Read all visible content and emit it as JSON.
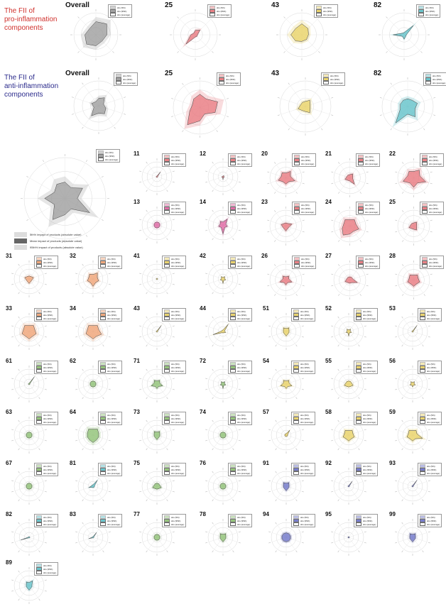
{
  "section_labels": {
    "pro": "The FII of\npro-inflammation\ncomponents",
    "anti": "The FII of\nanti-inflammation\ncomponents"
  },
  "label_colors": {
    "pro": "#d0312d",
    "anti": "#2b2b8c"
  },
  "legend_terms": [
    "sbs (5th)",
    "sbs (95th)",
    "sbs (average)"
  ],
  "key": {
    "low": "5th% impact of products (absolute value)",
    "mean": "Mean impact of products (absolute value)",
    "high": "95th% impact of products (absolute value)"
  },
  "palette": {
    "gray": "#9a9a9a",
    "red": "#e8747a",
    "orange": "#f0a070",
    "yellow": "#e8d060",
    "green": "#8cc070",
    "teal": "#5cc0c8",
    "blue": "#6a70c8",
    "pink": "#e060a0"
  },
  "chart_data": [
    {
      "id": "overall-pro",
      "type": "radar",
      "title": "Overall",
      "color": "gray",
      "values": [
        0.6,
        0.7,
        0.5,
        0.4,
        0.5,
        0.6,
        0.5,
        0.4
      ]
    },
    {
      "id": "25-pro",
      "type": "radar",
      "title": "25",
      "color": "red",
      "values": [
        0.2,
        0.3,
        0.1,
        0.1,
        0.1,
        0.6,
        0.2,
        0.1
      ]
    },
    {
      "id": "43-pro",
      "type": "radar",
      "title": "43",
      "color": "yellow",
      "values": [
        0.5,
        0.4,
        0.3,
        0.3,
        0.3,
        0.4,
        0.5,
        0.4
      ]
    },
    {
      "id": "82-pro",
      "type": "radar",
      "title": "82",
      "color": "teal",
      "values": [
        0.1,
        0.6,
        0.1,
        0.1,
        0.2,
        0.1,
        0.5,
        0.1
      ]
    },
    {
      "id": "overall-anti",
      "type": "radar",
      "title": "Overall",
      "color": "gray",
      "values": [
        0.3,
        0.4,
        0.2,
        0.3,
        0.4,
        0.3,
        0.5,
        0.2,
        0.3,
        0.2
      ]
    },
    {
      "id": "25-anti",
      "type": "radar",
      "title": "25",
      "color": "red",
      "values": [
        0.5,
        0.4,
        0.7,
        0.6,
        0.3,
        0.5,
        0.8,
        0.4,
        0.3,
        0.4
      ]
    },
    {
      "id": "43-anti",
      "type": "radar",
      "title": "43",
      "color": "yellow",
      "values": [
        0.2,
        0.3,
        0.2,
        0.2,
        0.3,
        0.2,
        0.2,
        0.3,
        0.2,
        0.2
      ]
    },
    {
      "id": "82-anti",
      "type": "radar",
      "title": "82",
      "color": "teal",
      "values": [
        0.3,
        0.3,
        0.4,
        0.3,
        0.5,
        0.3,
        0.8,
        0.3,
        0.3,
        0.3
      ]
    },
    {
      "id": "overall-big",
      "type": "radar",
      "title": "",
      "color": "gray",
      "values": [
        0.4,
        0.3,
        0.5,
        0.3,
        0.7,
        0.3,
        0.4,
        0.6,
        0.3,
        0.5,
        0.3,
        0.4
      ]
    },
    {
      "id": "11",
      "type": "radar",
      "title": "11",
      "color": "red",
      "values": [
        0.05,
        0.4,
        0.05,
        0.05,
        0.05,
        0.05,
        0.05,
        0.05,
        0.05,
        0.05
      ]
    },
    {
      "id": "12",
      "type": "radar",
      "title": "12",
      "color": "red",
      "values": [
        0.05,
        0.1,
        0.05,
        0.1,
        0.05,
        0.2,
        0.05,
        0.1,
        0.05,
        0.05
      ]
    },
    {
      "id": "20",
      "type": "radar",
      "title": "20",
      "color": "red",
      "values": [
        0.3,
        0.5,
        0.3,
        0.6,
        0.3,
        0.4,
        0.3,
        0.5,
        0.3,
        0.4
      ]
    },
    {
      "id": "21",
      "type": "radar",
      "title": "21",
      "color": "red",
      "values": [
        0.2,
        0.3,
        0.2,
        0.2,
        0.5,
        0.2,
        0.2,
        0.3,
        0.2,
        0.2
      ]
    },
    {
      "id": "22",
      "type": "radar",
      "title": "22",
      "color": "red",
      "values": [
        0.4,
        0.6,
        0.4,
        0.8,
        0.4,
        0.6,
        0.4,
        0.7,
        0.4,
        0.5
      ]
    },
    {
      "id": "13",
      "type": "radar",
      "title": "13",
      "color": "pink",
      "values": [
        0.2,
        0.2,
        0.2,
        0.2,
        0.2,
        0.2,
        0.2,
        0.2,
        0.2,
        0.2
      ]
    },
    {
      "id": "14",
      "type": "radar",
      "title": "14",
      "color": "pink",
      "values": [
        0.2,
        0.5,
        0.2,
        0.3,
        0.2,
        0.6,
        0.2,
        0.3,
        0.2,
        0.3
      ]
    },
    {
      "id": "23",
      "type": "radar",
      "title": "23",
      "color": "red",
      "values": [
        0.2,
        0.2,
        0.4,
        0.2,
        0.2,
        0.3,
        0.2,
        0.2,
        0.3,
        0.2
      ]
    },
    {
      "id": "24",
      "type": "radar",
      "title": "24",
      "color": "red",
      "values": [
        0.4,
        0.5,
        0.4,
        0.6,
        0.4,
        0.5,
        0.7,
        0.5,
        0.4,
        0.5
      ]
    },
    {
      "id": "25",
      "type": "radar",
      "title": "25",
      "color": "red",
      "values": [
        0.2,
        0.3,
        0.2,
        0.2,
        0.3,
        0.2,
        0.2,
        0.3,
        0.2,
        0.2
      ]
    },
    {
      "id": "31",
      "type": "radar",
      "title": "31",
      "color": "orange",
      "values": [
        0.2,
        0.2,
        0.3,
        0.2,
        0.2,
        0.3,
        0.2,
        0.2,
        0.3,
        0.2
      ]
    },
    {
      "id": "32",
      "type": "radar",
      "title": "32",
      "color": "orange",
      "values": [
        0.3,
        0.5,
        0.3,
        0.4,
        0.3,
        0.5,
        0.3,
        0.4,
        0.3,
        0.4
      ]
    },
    {
      "id": "41",
      "type": "radar",
      "title": "41",
      "color": "yellow",
      "values": [
        0.05,
        0.05,
        0.05,
        0.05,
        0.05,
        0.05,
        0.05,
        0.05,
        0.05,
        0.05
      ]
    },
    {
      "id": "42",
      "type": "radar",
      "title": "42",
      "color": "yellow",
      "values": [
        0.1,
        0.2,
        0.1,
        0.2,
        0.1,
        0.3,
        0.1,
        0.2,
        0.1,
        0.2
      ]
    },
    {
      "id": "26",
      "type": "radar",
      "title": "26",
      "color": "red",
      "values": [
        0.2,
        0.3,
        0.2,
        0.4,
        0.2,
        0.3,
        0.2,
        0.4,
        0.2,
        0.3
      ]
    },
    {
      "id": "27",
      "type": "radar",
      "title": "27",
      "color": "red",
      "values": [
        0.2,
        0.2,
        0.2,
        0.5,
        0.2,
        0.2,
        0.2,
        0.3,
        0.2,
        0.2
      ]
    },
    {
      "id": "28",
      "type": "radar",
      "title": "28",
      "color": "red",
      "values": [
        0.3,
        0.4,
        0.3,
        0.4,
        0.3,
        0.4,
        0.3,
        0.4,
        0.3,
        0.4
      ]
    },
    {
      "id": "33",
      "type": "radar",
      "title": "33",
      "color": "orange",
      "values": [
        0.4,
        0.5,
        0.4,
        0.5,
        0.4,
        0.5,
        0.4,
        0.5,
        0.4,
        0.5
      ]
    },
    {
      "id": "34",
      "type": "radar",
      "title": "34",
      "color": "orange",
      "values": [
        0.4,
        0.5,
        0.4,
        0.6,
        0.4,
        0.5,
        0.4,
        0.5,
        0.4,
        0.5
      ]
    },
    {
      "id": "43",
      "type": "radar",
      "title": "43",
      "color": "yellow",
      "values": [
        0.05,
        0.5,
        0.05,
        0.05,
        0.05,
        0.05,
        0.05,
        0.05,
        0.05,
        0.05
      ]
    },
    {
      "id": "44",
      "type": "radar",
      "title": "44",
      "color": "yellow",
      "values": [
        0.1,
        0.6,
        0.1,
        0.2,
        0.1,
        0.1,
        0.1,
        0.7,
        0.1,
        0.1
      ]
    },
    {
      "id": "51",
      "type": "radar",
      "title": "51",
      "color": "yellow",
      "values": [
        0.2,
        0.3,
        0.2,
        0.2,
        0.2,
        0.3,
        0.2,
        0.2,
        0.2,
        0.3
      ]
    },
    {
      "id": "52",
      "type": "radar",
      "title": "52",
      "color": "yellow",
      "values": [
        0.1,
        0.2,
        0.1,
        0.2,
        0.1,
        0.3,
        0.1,
        0.2,
        0.1,
        0.2
      ]
    },
    {
      "id": "53",
      "type": "radar",
      "title": "53",
      "color": "yellow",
      "values": [
        0.05,
        0.5,
        0.05,
        0.05,
        0.05,
        0.05,
        0.05,
        0.05,
        0.05,
        0.05
      ]
    },
    {
      "id": "61",
      "type": "radar",
      "title": "61",
      "color": "green",
      "values": [
        0.05,
        0.6,
        0.05,
        0.05,
        0.05,
        0.05,
        0.05,
        0.05,
        0.05,
        0.05
      ]
    },
    {
      "id": "62",
      "type": "radar",
      "title": "62",
      "color": "green",
      "values": [
        0.2,
        0.2,
        0.2,
        0.2,
        0.2,
        0.2,
        0.2,
        0.2,
        0.2,
        0.2
      ]
    },
    {
      "id": "71",
      "type": "radar",
      "title": "71",
      "color": "green",
      "values": [
        0.2,
        0.3,
        0.2,
        0.4,
        0.2,
        0.3,
        0.2,
        0.4,
        0.2,
        0.3
      ]
    },
    {
      "id": "72",
      "type": "radar",
      "title": "72",
      "color": "green",
      "values": [
        0.1,
        0.2,
        0.1,
        0.2,
        0.1,
        0.3,
        0.1,
        0.2,
        0.1,
        0.2
      ]
    },
    {
      "id": "54",
      "type": "radar",
      "title": "54",
      "color": "yellow",
      "values": [
        0.2,
        0.3,
        0.2,
        0.4,
        0.2,
        0.3,
        0.2,
        0.4,
        0.2,
        0.3
      ]
    },
    {
      "id": "55",
      "type": "radar",
      "title": "55",
      "color": "yellow",
      "values": [
        0.2,
        0.2,
        0.2,
        0.3,
        0.2,
        0.2,
        0.2,
        0.3,
        0.2,
        0.2
      ]
    },
    {
      "id": "56",
      "type": "radar",
      "title": "56",
      "color": "yellow",
      "values": [
        0.1,
        0.2,
        0.1,
        0.2,
        0.1,
        0.2,
        0.1,
        0.2,
        0.1,
        0.2
      ]
    },
    {
      "id": "63",
      "type": "radar",
      "title": "63",
      "color": "green",
      "values": [
        0.2,
        0.2,
        0.2,
        0.2,
        0.2,
        0.2,
        0.2,
        0.2,
        0.2,
        0.2
      ]
    },
    {
      "id": "64",
      "type": "radar",
      "title": "64",
      "color": "green",
      "values": [
        0.4,
        0.5,
        0.4,
        0.4,
        0.4,
        0.5,
        0.4,
        0.4,
        0.4,
        0.5
      ]
    },
    {
      "id": "73",
      "type": "radar",
      "title": "73",
      "color": "green",
      "values": [
        0.2,
        0.3,
        0.2,
        0.2,
        0.2,
        0.3,
        0.2,
        0.2,
        0.2,
        0.3
      ]
    },
    {
      "id": "74",
      "type": "radar",
      "title": "74",
      "color": "green",
      "values": [
        0.2,
        0.2,
        0.2,
        0.2,
        0.2,
        0.2,
        0.2,
        0.2,
        0.2,
        0.2
      ]
    },
    {
      "id": "57",
      "type": "radar",
      "title": "57",
      "color": "yellow",
      "values": [
        0.1,
        0.4,
        0.1,
        0.1,
        0.1,
        0.1,
        0.1,
        0.1,
        0.1,
        0.1
      ]
    },
    {
      "id": "58",
      "type": "radar",
      "title": "58",
      "color": "yellow",
      "values": [
        0.3,
        0.4,
        0.3,
        0.4,
        0.3,
        0.4,
        0.3,
        0.4,
        0.3,
        0.4
      ]
    },
    {
      "id": "59",
      "type": "radar",
      "title": "59",
      "color": "yellow",
      "values": [
        0.3,
        0.4,
        0.3,
        0.7,
        0.3,
        0.4,
        0.3,
        0.4,
        0.3,
        0.4
      ]
    },
    {
      "id": "67",
      "type": "radar",
      "title": "67",
      "color": "green",
      "values": [
        0.2,
        0.2,
        0.2,
        0.2,
        0.2,
        0.2,
        0.2,
        0.2,
        0.2,
        0.2
      ]
    },
    {
      "id": "81",
      "type": "radar",
      "title": "81",
      "color": "teal",
      "values": [
        0.1,
        0.5,
        0.1,
        0.1,
        0.1,
        0.1,
        0.1,
        0.3,
        0.1,
        0.1
      ]
    },
    {
      "id": "75",
      "type": "radar",
      "title": "75",
      "color": "green",
      "values": [
        0.2,
        0.2,
        0.2,
        0.3,
        0.2,
        0.2,
        0.2,
        0.3,
        0.2,
        0.2
      ]
    },
    {
      "id": "76",
      "type": "radar",
      "title": "76",
      "color": "green",
      "values": [
        0.2,
        0.2,
        0.2,
        0.2,
        0.2,
        0.2,
        0.2,
        0.2,
        0.2,
        0.2
      ]
    },
    {
      "id": "91",
      "type": "radar",
      "title": "91",
      "color": "blue",
      "values": [
        0.2,
        0.3,
        0.2,
        0.2,
        0.2,
        0.3,
        0.2,
        0.2,
        0.2,
        0.3
      ]
    },
    {
      "id": "92",
      "type": "radar",
      "title": "92",
      "color": "blue",
      "values": [
        0.05,
        0.4,
        0.05,
        0.05,
        0.05,
        0.05,
        0.05,
        0.05,
        0.05,
        0.05
      ]
    },
    {
      "id": "93",
      "type": "radar",
      "title": "93",
      "color": "blue",
      "values": [
        0.05,
        0.5,
        0.05,
        0.05,
        0.05,
        0.05,
        0.05,
        0.05,
        0.05,
        0.05
      ]
    },
    {
      "id": "82",
      "type": "radar",
      "title": "82",
      "color": "teal",
      "values": [
        0.05,
        0.05,
        0.05,
        0.05,
        0.05,
        0.05,
        0.05,
        0.6,
        0.05,
        0.05
      ]
    },
    {
      "id": "83",
      "type": "radar",
      "title": "83",
      "color": "teal",
      "values": [
        0.05,
        0.4,
        0.05,
        0.05,
        0.05,
        0.05,
        0.05,
        0.3,
        0.05,
        0.05
      ]
    },
    {
      "id": "77",
      "type": "radar",
      "title": "77",
      "color": "green",
      "values": [
        0.2,
        0.2,
        0.2,
        0.2,
        0.2,
        0.2,
        0.2,
        0.2,
        0.2,
        0.2
      ]
    },
    {
      "id": "78",
      "type": "radar",
      "title": "78",
      "color": "green",
      "values": [
        0.2,
        0.3,
        0.2,
        0.2,
        0.2,
        0.3,
        0.2,
        0.2,
        0.2,
        0.3
      ]
    },
    {
      "id": "94",
      "type": "radar",
      "title": "94",
      "color": "blue",
      "values": [
        0.3,
        0.3,
        0.3,
        0.3,
        0.3,
        0.3,
        0.3,
        0.3,
        0.3,
        0.3
      ]
    },
    {
      "id": "95",
      "type": "radar",
      "title": "95",
      "color": "blue",
      "values": [
        0.05,
        0.05,
        0.05,
        0.05,
        0.05,
        0.05,
        0.05,
        0.05,
        0.05,
        0.05
      ]
    },
    {
      "id": "99",
      "type": "radar",
      "title": "99",
      "color": "blue",
      "values": [
        0.2,
        0.3,
        0.2,
        0.2,
        0.2,
        0.3,
        0.2,
        0.2,
        0.2,
        0.3
      ]
    },
    {
      "id": "89",
      "type": "radar",
      "title": "89",
      "color": "teal",
      "values": [
        0.2,
        0.4,
        0.2,
        0.2,
        0.2,
        0.3,
        0.2,
        0.2,
        0.2,
        0.3
      ]
    }
  ]
}
